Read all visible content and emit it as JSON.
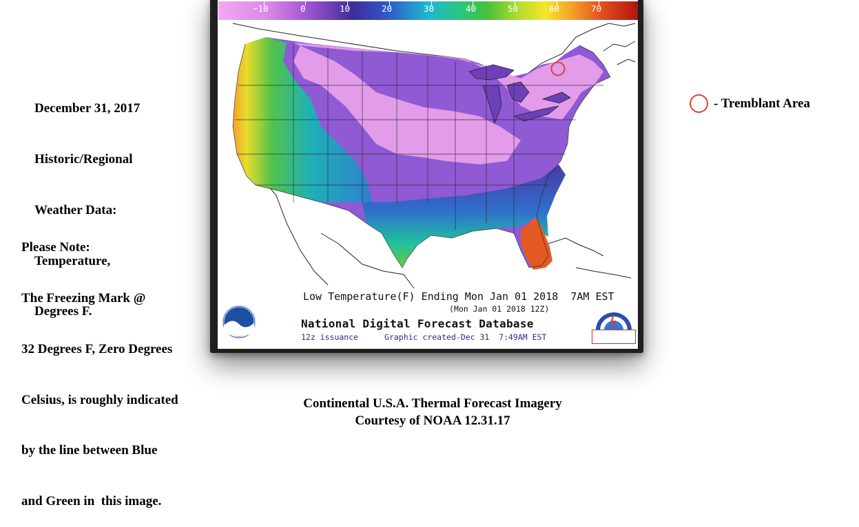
{
  "left_header": {
    "lines": [
      "December 31, 2017",
      "Historic/Regional",
      "Weather Data:",
      "Temperature,",
      "Degrees F."
    ]
  },
  "left_note": {
    "lines": [
      "Please Note:",
      "The Freezing Mark @",
      "32 Degrees F, Zero Degrees",
      "Celsius, is roughly indicated",
      "by the line between Blue",
      "and Green in  this image."
    ]
  },
  "legend": {
    "label": "- Tremblant Area",
    "marker_color": "#d6452d"
  },
  "caption": {
    "line1": "Continental U.S.A. Thermal Forecast Imagery",
    "line2": "Courtesy of NOAA 12.31.17"
  },
  "map": {
    "color_scale": {
      "ticks": [
        "−10",
        "0",
        "10",
        "20",
        "30",
        "40",
        "50",
        "60",
        "70"
      ]
    },
    "line1": "Low Temperature(F) Ending Mon Jan 01 2018  7AM EST",
    "line2": "(Mon Jan 01 2018 12Z)",
    "line3": "National Digital Forecast Database",
    "issuance": "12z issuance",
    "created": "Graphic created-Dec 31  7:49AM EST",
    "marker_color": "#d6452d"
  }
}
